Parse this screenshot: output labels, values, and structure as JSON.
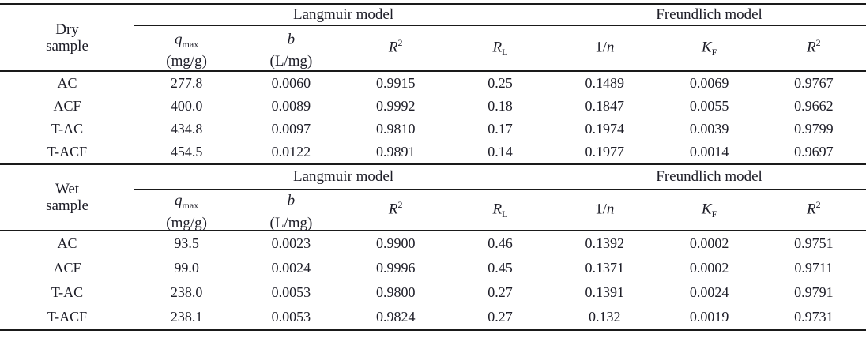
{
  "table": {
    "model_headers": {
      "langmuir": "Langmuir model",
      "freundlich": "Freundlich model"
    },
    "column_headers": [
      {
        "pre": "",
        "sym": "q",
        "sub": "max",
        "sup": "",
        "unit": "(mg/g)"
      },
      {
        "pre": "",
        "sym": "b",
        "sub": "",
        "sup": "",
        "unit": "(L/mg)"
      },
      {
        "pre": "",
        "sym": "R",
        "sub": "",
        "sup": "2",
        "unit": ""
      },
      {
        "pre": "",
        "sym": "R",
        "sub": "L",
        "sup": "",
        "unit": ""
      },
      {
        "pre": "1/",
        "sym": "n",
        "sub": "",
        "sup": "",
        "unit": ""
      },
      {
        "pre": "",
        "sym": "K",
        "sub": "F",
        "sup": "",
        "unit": ""
      },
      {
        "pre": "",
        "sym": "R",
        "sub": "",
        "sup": "2",
        "unit": ""
      }
    ],
    "sections": [
      {
        "group_label": [
          "Dry",
          "sample"
        ],
        "rows": [
          {
            "sample": "AC",
            "values": [
              "277.8",
              "0.0060",
              "0.9915",
              "0.25",
              "0.1489",
              "0.0069",
              "0.9767"
            ]
          },
          {
            "sample": "ACF",
            "values": [
              "400.0",
              "0.0089",
              "0.9992",
              "0.18",
              "0.1847",
              "0.0055",
              "0.9662"
            ]
          },
          {
            "sample": "T-AC",
            "values": [
              "434.8",
              "0.0097",
              "0.9810",
              "0.17",
              "0.1974",
              "0.0039",
              "0.9799"
            ]
          },
          {
            "sample": "T-ACF",
            "values": [
              "454.5",
              "0.0122",
              "0.9891",
              "0.14",
              "0.1977",
              "0.0014",
              "0.9697"
            ]
          }
        ]
      },
      {
        "group_label": [
          "Wet",
          "sample"
        ],
        "rows": [
          {
            "sample": "AC",
            "values": [
              "93.5",
              "0.0023",
              "0.9900",
              "0.46",
              "0.1392",
              "0.0002",
              "0.9751"
            ]
          },
          {
            "sample": "ACF",
            "values": [
              "99.0",
              "0.0024",
              "0.9996",
              "0.45",
              "0.1371",
              "0.0002",
              "0.9711"
            ]
          },
          {
            "sample": "T-AC",
            "values": [
              "238.0",
              "0.0053",
              "0.9800",
              "0.27",
              "0.1391",
              "0.0024",
              "0.9791"
            ]
          },
          {
            "sample": "T-ACF",
            "values": [
              "238.1",
              "0.0053",
              "0.9824",
              "0.27",
              "0.132",
              "0.0019",
              "0.9731"
            ]
          }
        ]
      }
    ],
    "colors": {
      "text": "#1d1d27",
      "rule": "#1a1a1a",
      "background": "#ffffff"
    }
  }
}
